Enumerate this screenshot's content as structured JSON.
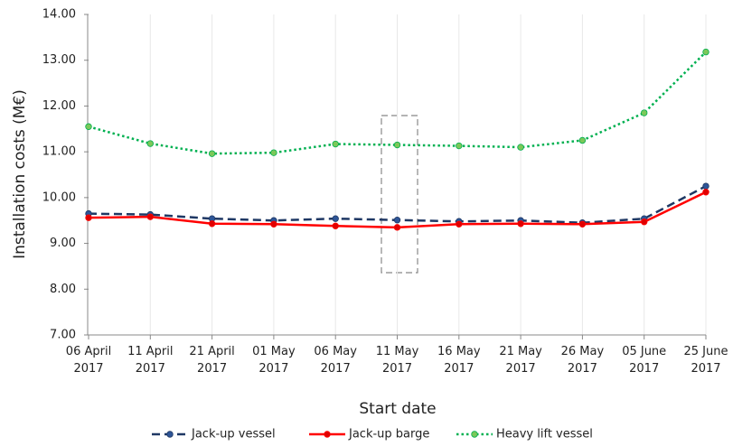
{
  "chart_data": {
    "type": "line",
    "y_label": "Installation costs (M€)",
    "x_label": "Start date",
    "categories": [
      "06 April 2017",
      "11 April 2017",
      "21 April 2017",
      "01 May 2017",
      "06 May 2017",
      "11 May 2017",
      "16 May 2017",
      "21 May 2017",
      "26 May 2017",
      "05 June 2017",
      "25 June 2017"
    ],
    "series": [
      {
        "name": "Jack-up vessel",
        "color": "#1f3864",
        "marker_color": "#2e5597",
        "line_style": "dashed",
        "values": [
          9.65,
          9.63,
          9.54,
          9.5,
          9.54,
          9.51,
          9.48,
          9.5,
          9.45,
          9.54,
          10.25
        ]
      },
      {
        "name": "Jack-up barge",
        "color": "#ff0000",
        "marker_color": "#e00000",
        "line_style": "solid",
        "values": [
          9.56,
          9.58,
          9.43,
          9.42,
          9.38,
          9.35,
          9.42,
          9.43,
          9.42,
          9.47,
          10.12
        ]
      },
      {
        "name": "Heavy lift vessel",
        "color": "#00b050",
        "marker_color": "#7cc85a",
        "line_style": "dotted",
        "values": [
          11.55,
          11.18,
          10.96,
          10.98,
          11.17,
          11.15,
          11.13,
          11.1,
          11.25,
          11.85,
          13.18
        ]
      }
    ],
    "ylim": [
      7,
      14
    ],
    "yticks": [
      {
        "value": 7,
        "label": "7.00"
      },
      {
        "value": 8,
        "label": "8.00"
      },
      {
        "value": 9,
        "label": "9.00"
      },
      {
        "value": 10,
        "label": "10.00"
      },
      {
        "value": 11,
        "label": "11.00"
      },
      {
        "value": 12,
        "label": "12.00"
      },
      {
        "value": 13,
        "label": "13.00"
      },
      {
        "value": 14,
        "label": "14.00"
      }
    ],
    "grid": true,
    "legend": "bottom"
  }
}
